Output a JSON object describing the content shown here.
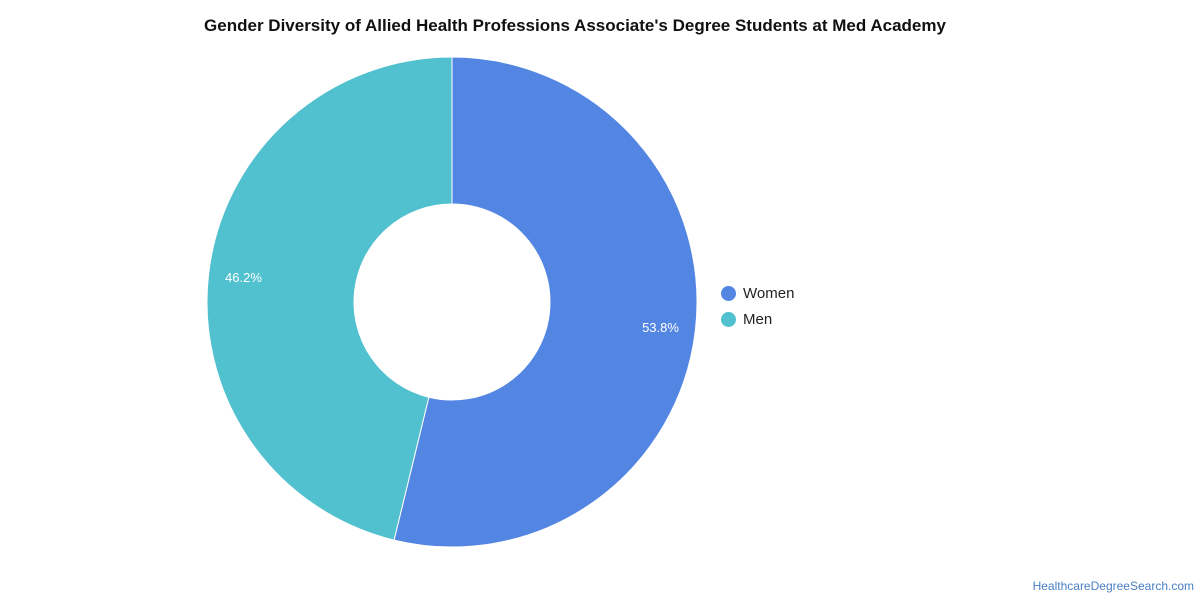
{
  "chart_data": {
    "type": "pie",
    "title": "Gender Diversity of Allied Health Professions Associate's Degree Students at Med Academy",
    "categories": [
      "Women",
      "Men"
    ],
    "values": [
      53.8,
      46.2
    ],
    "labels": [
      "53.8%",
      "46.2%"
    ],
    "colors": [
      "#5385e3",
      "#51c0cf"
    ],
    "donut": true,
    "legend_position": "right"
  },
  "watermark": "HealthcareDegreeSearch.com"
}
